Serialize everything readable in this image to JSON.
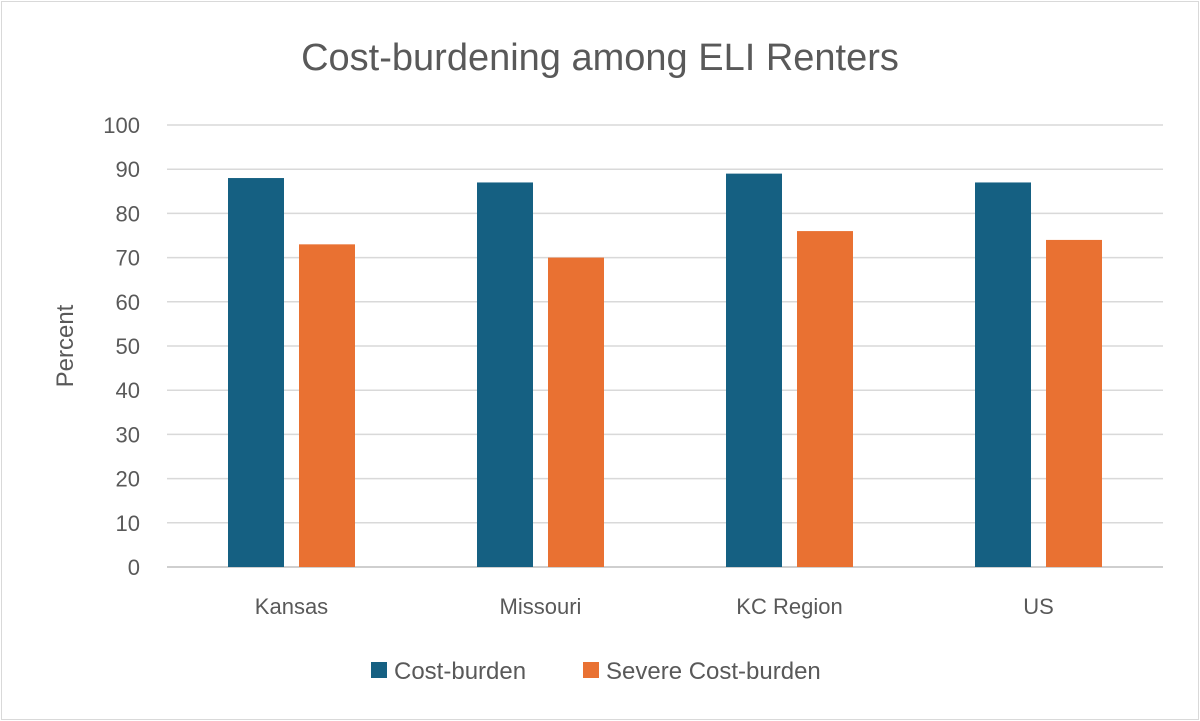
{
  "chart_data": {
    "type": "bar",
    "title": "Cost-burdening among ELI Renters",
    "xlabel": "",
    "ylabel": "Percent",
    "categories": [
      "Kansas",
      "Missouri",
      "KC Region",
      "US"
    ],
    "ylim": [
      0,
      100
    ],
    "yticks": [
      0,
      10,
      20,
      30,
      40,
      50,
      60,
      70,
      80,
      90,
      100
    ],
    "grid": true,
    "legend_position": "bottom",
    "series": [
      {
        "name": "Cost-burden",
        "color": "#156082",
        "values": [
          88,
          87,
          89,
          87
        ]
      },
      {
        "name": "Severe Cost-burden",
        "color": "#E97132",
        "values": [
          73,
          70,
          76,
          74
        ]
      }
    ]
  }
}
